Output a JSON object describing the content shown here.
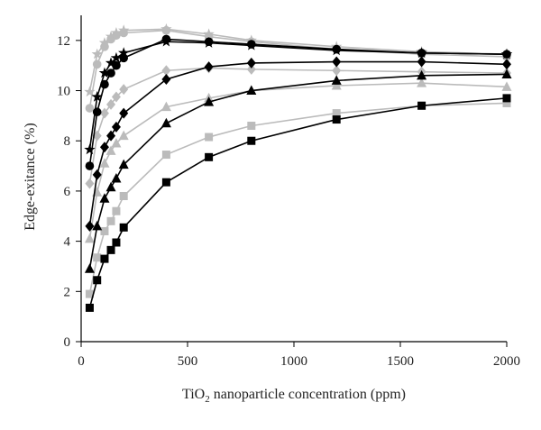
{
  "chart_data": {
    "type": "line",
    "title": "",
    "xlabel_main": "TiO",
    "xlabel_sub": "2",
    "xlabel_rest": " nanoparticle concentration (ppm)",
    "ylabel": "Edge-exitance (%)",
    "xlim": [
      0,
      2000
    ],
    "ylim": [
      0,
      13
    ],
    "xticks": [
      0,
      500,
      1000,
      1500,
      2000
    ],
    "yticks": [
      0,
      2,
      4,
      6,
      8,
      10,
      12
    ],
    "grid": false,
    "legend": "none",
    "series": [
      {
        "marker": "square",
        "color": "#000000",
        "x": [
          40,
          75,
          110,
          140,
          165,
          200,
          400,
          600,
          800,
          1200,
          1600,
          2000
        ],
        "y": [
          1.35,
          2.45,
          3.3,
          3.65,
          3.95,
          4.55,
          6.35,
          7.35,
          8.0,
          8.85,
          9.4,
          9.7
        ]
      },
      {
        "marker": "square",
        "color": "#bbbbbb",
        "x": [
          40,
          75,
          110,
          140,
          165,
          200,
          400,
          600,
          800,
          1200,
          1600,
          2000
        ],
        "y": [
          1.9,
          3.35,
          4.4,
          4.8,
          5.2,
          5.8,
          7.45,
          8.15,
          8.6,
          9.1,
          9.4,
          9.5
        ]
      },
      {
        "marker": "triangle",
        "color": "#000000",
        "x": [
          40,
          75,
          110,
          140,
          165,
          200,
          400,
          600,
          800,
          1200,
          1600,
          2000
        ],
        "y": [
          2.9,
          4.6,
          5.7,
          6.15,
          6.5,
          7.05,
          8.7,
          9.55,
          10.0,
          10.4,
          10.6,
          10.65
        ]
      },
      {
        "marker": "triangle",
        "color": "#bbbbbb",
        "x": [
          40,
          75,
          110,
          140,
          165,
          200,
          400,
          600,
          800,
          1200,
          1600,
          2000
        ],
        "y": [
          4.1,
          5.95,
          7.1,
          7.6,
          7.9,
          8.2,
          9.35,
          9.7,
          10.0,
          10.2,
          10.3,
          10.15
        ]
      },
      {
        "marker": "diamond",
        "color": "#000000",
        "x": [
          40,
          75,
          110,
          140,
          165,
          200,
          400,
          600,
          800,
          1200,
          1600,
          2000
        ],
        "y": [
          4.6,
          6.65,
          7.75,
          8.2,
          8.55,
          9.1,
          10.45,
          10.95,
          11.1,
          11.15,
          11.15,
          11.05
        ]
      },
      {
        "marker": "diamond",
        "color": "#bbbbbb",
        "x": [
          40,
          75,
          110,
          140,
          165,
          200,
          400,
          600,
          800,
          1200,
          1600,
          2000
        ],
        "y": [
          6.3,
          8.2,
          9.1,
          9.45,
          9.75,
          10.05,
          10.8,
          10.9,
          10.85,
          10.8,
          10.75,
          10.7
        ]
      },
      {
        "marker": "circle",
        "color": "#000000",
        "x": [
          40,
          75,
          110,
          140,
          165,
          200,
          400,
          600,
          800,
          1200,
          1600,
          2000
        ],
        "y": [
          7.0,
          9.15,
          10.25,
          10.7,
          11.0,
          11.3,
          12.05,
          11.95,
          11.85,
          11.65,
          11.5,
          11.45
        ]
      },
      {
        "marker": "star",
        "color": "#000000",
        "x": [
          40,
          75,
          110,
          140,
          165,
          200,
          400,
          600,
          800,
          1200,
          1600,
          2000
        ],
        "y": [
          7.65,
          9.75,
          10.7,
          11.1,
          11.3,
          11.5,
          11.95,
          11.9,
          11.8,
          11.6,
          11.5,
          11.45
        ]
      },
      {
        "marker": "circle",
        "color": "#bbbbbb",
        "x": [
          40,
          75,
          110,
          140,
          165,
          200,
          400,
          600,
          800,
          1200,
          1600,
          2000
        ],
        "y": [
          9.3,
          11.05,
          11.75,
          12.05,
          12.2,
          12.3,
          12.4,
          12.15,
          11.95,
          11.65,
          11.45,
          11.35
        ]
      },
      {
        "marker": "star",
        "color": "#bbbbbb",
        "x": [
          40,
          75,
          110,
          140,
          165,
          200,
          400,
          600,
          800,
          1200,
          1600,
          2000
        ],
        "y": [
          9.95,
          11.45,
          11.9,
          12.15,
          12.3,
          12.4,
          12.45,
          12.25,
          12.0,
          11.75,
          11.55,
          11.45
        ]
      }
    ]
  }
}
